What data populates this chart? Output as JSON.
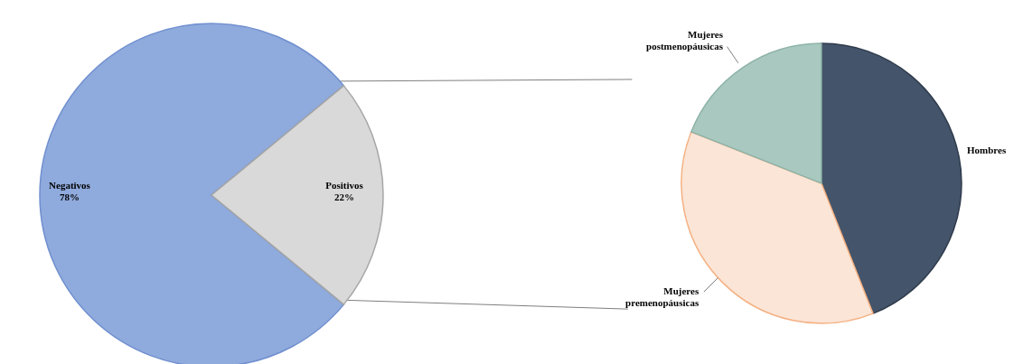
{
  "chart_data": [
    {
      "type": "pie",
      "categories": [
        "Negativos",
        "Positivos"
      ],
      "values": [
        78,
        22
      ],
      "value_labels": [
        "78%",
        "22%"
      ],
      "colors": [
        "#8faadc",
        "#d9d9d9"
      ],
      "legend": false
    },
    {
      "type": "pie",
      "categories": [
        "Hombres",
        "Mujeres premenopáusicas",
        "Mujeres postmenopáusicas"
      ],
      "values": [
        44,
        37,
        19
      ],
      "colors": [
        "#44546a",
        "#fbe5d6",
        "#a9c9c0"
      ],
      "legend": false
    }
  ]
}
